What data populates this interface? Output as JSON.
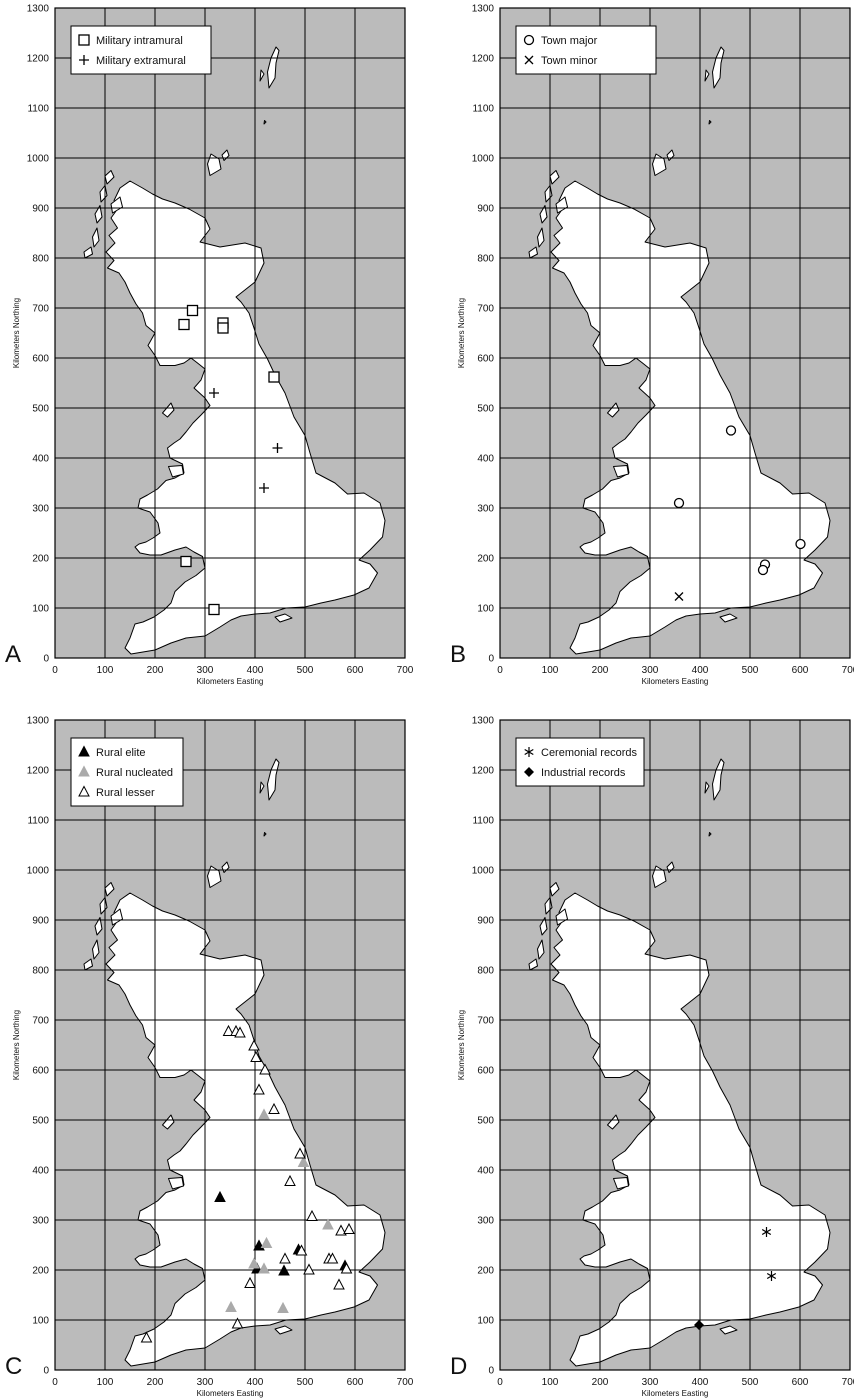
{
  "x_axis_label": "Kilometers Easting",
  "y_axis_label": "Kilometers Northing",
  "x_ticks": [
    0,
    100,
    200,
    300,
    400,
    500,
    600,
    700
  ],
  "y_ticks": [
    0,
    100,
    200,
    300,
    400,
    500,
    600,
    700,
    800,
    900,
    1000,
    1100,
    1200,
    1300
  ],
  "colors": {
    "sea": "#bbbbbb",
    "land": "#ffffff",
    "grid": "#000000",
    "rural_nucleated": "#aaaaaa"
  },
  "panels": [
    {
      "letter": "A",
      "legend": [
        {
          "label": "Military intramural",
          "marker": "square"
        },
        {
          "label": "Military extramural",
          "marker": "plus"
        }
      ],
      "points": [
        {
          "marker": "square",
          "x": 258,
          "y": 667
        },
        {
          "marker": "square",
          "x": 275,
          "y": 695
        },
        {
          "marker": "square",
          "x": 336,
          "y": 670
        },
        {
          "marker": "square",
          "x": 336,
          "y": 660
        },
        {
          "marker": "square",
          "x": 438,
          "y": 562
        },
        {
          "marker": "square",
          "x": 262,
          "y": 193
        },
        {
          "marker": "square",
          "x": 318,
          "y": 97
        },
        {
          "marker": "plus",
          "x": 318,
          "y": 530
        },
        {
          "marker": "plus",
          "x": 445,
          "y": 420
        },
        {
          "marker": "plus",
          "x": 418,
          "y": 340
        }
      ]
    },
    {
      "letter": "B",
      "legend": [
        {
          "label": "Town major",
          "marker": "circle"
        },
        {
          "label": "Town minor",
          "marker": "cross"
        }
      ],
      "points": [
        {
          "marker": "circle",
          "x": 462,
          "y": 455
        },
        {
          "marker": "circle",
          "x": 358,
          "y": 310
        },
        {
          "marker": "circle",
          "x": 530,
          "y": 187
        },
        {
          "marker": "circle",
          "x": 526,
          "y": 176
        },
        {
          "marker": "circle",
          "x": 601,
          "y": 228
        },
        {
          "marker": "cross",
          "x": 358,
          "y": 123
        }
      ]
    },
    {
      "letter": "C",
      "legend": [
        {
          "label": "Rural elite",
          "marker": "tri-filled"
        },
        {
          "label": "Rural nucleated",
          "marker": "tri-grey"
        },
        {
          "label": "Rural lesser",
          "marker": "tri-open"
        }
      ],
      "points": [
        {
          "marker": "tri-filled",
          "x": 330,
          "y": 345
        },
        {
          "marker": "tri-filled",
          "x": 408,
          "y": 248
        },
        {
          "marker": "tri-filled",
          "x": 404,
          "y": 202
        },
        {
          "marker": "tri-filled",
          "x": 458,
          "y": 198
        },
        {
          "marker": "tri-filled",
          "x": 487,
          "y": 240
        },
        {
          "marker": "tri-filled",
          "x": 580,
          "y": 208
        },
        {
          "marker": "tri-grey",
          "x": 418,
          "y": 510
        },
        {
          "marker": "tri-grey",
          "x": 497,
          "y": 415
        },
        {
          "marker": "tri-grey",
          "x": 546,
          "y": 290
        },
        {
          "marker": "tri-grey",
          "x": 423,
          "y": 253
        },
        {
          "marker": "tri-grey",
          "x": 398,
          "y": 212
        },
        {
          "marker": "tri-grey",
          "x": 418,
          "y": 202
        },
        {
          "marker": "tri-grey",
          "x": 352,
          "y": 125
        },
        {
          "marker": "tri-grey",
          "x": 456,
          "y": 123
        },
        {
          "marker": "tri-open",
          "x": 347,
          "y": 677
        },
        {
          "marker": "tri-open",
          "x": 362,
          "y": 677
        },
        {
          "marker": "tri-open",
          "x": 370,
          "y": 674
        },
        {
          "marker": "tri-open",
          "x": 398,
          "y": 648
        },
        {
          "marker": "tri-open",
          "x": 402,
          "y": 625
        },
        {
          "marker": "tri-open",
          "x": 420,
          "y": 600
        },
        {
          "marker": "tri-open",
          "x": 408,
          "y": 560
        },
        {
          "marker": "tri-open",
          "x": 438,
          "y": 521
        },
        {
          "marker": "tri-open",
          "x": 490,
          "y": 432
        },
        {
          "marker": "tri-open",
          "x": 470,
          "y": 377
        },
        {
          "marker": "tri-open",
          "x": 514,
          "y": 307
        },
        {
          "marker": "tri-open",
          "x": 572,
          "y": 278
        },
        {
          "marker": "tri-open",
          "x": 588,
          "y": 281
        },
        {
          "marker": "tri-open",
          "x": 493,
          "y": 238
        },
        {
          "marker": "tri-open",
          "x": 460,
          "y": 222
        },
        {
          "marker": "tri-open",
          "x": 548,
          "y": 222
        },
        {
          "marker": "tri-open",
          "x": 555,
          "y": 222
        },
        {
          "marker": "tri-open",
          "x": 508,
          "y": 200
        },
        {
          "marker": "tri-open",
          "x": 583,
          "y": 202
        },
        {
          "marker": "tri-open",
          "x": 390,
          "y": 173
        },
        {
          "marker": "tri-open",
          "x": 568,
          "y": 170
        },
        {
          "marker": "tri-open",
          "x": 365,
          "y": 92
        },
        {
          "marker": "tri-open",
          "x": 183,
          "y": 64
        }
      ]
    },
    {
      "letter": "D",
      "legend": [
        {
          "label": "Ceremonial records",
          "marker": "asterisk"
        },
        {
          "label": "Industrial records",
          "marker": "diamond"
        }
      ],
      "points": [
        {
          "marker": "asterisk",
          "x": 533,
          "y": 276
        },
        {
          "marker": "asterisk",
          "x": 543,
          "y": 188
        },
        {
          "marker": "diamond",
          "x": 398,
          "y": 90
        }
      ]
    }
  ]
}
